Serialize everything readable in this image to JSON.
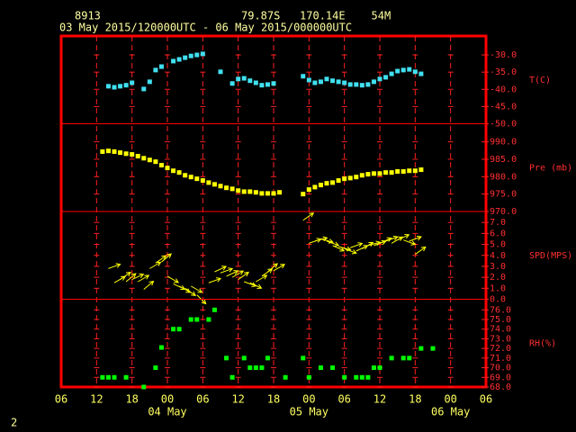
{
  "header": {
    "station": "8913",
    "location": "79.87S   170.14E    54M",
    "period": "03 May 2015/120000UTC - 06 May 2015/000000UTC"
  },
  "footer": "2",
  "x_axis": {
    "xlim": [
      0,
      72
    ],
    "xticks": [
      {
        "value": 0,
        "label": "06"
      },
      {
        "value": 6,
        "label": "12"
      },
      {
        "value": 12,
        "label": "18"
      },
      {
        "value": 18,
        "label": "00"
      },
      {
        "value": 24,
        "label": "06"
      },
      {
        "value": 30,
        "label": "12"
      },
      {
        "value": 36,
        "label": "18"
      },
      {
        "value": 42,
        "label": "00"
      },
      {
        "value": 48,
        "label": "06"
      },
      {
        "value": 54,
        "label": "12"
      },
      {
        "value": 60,
        "label": "18"
      },
      {
        "value": 66,
        "label": "00"
      },
      {
        "value": 72,
        "label": "06"
      }
    ],
    "day_labels": [
      {
        "value": 18,
        "label": "04 May"
      },
      {
        "value": 42,
        "label": "05 May"
      },
      {
        "value": 66,
        "label": "06 May"
      }
    ]
  },
  "chart_data": [
    {
      "type": "scatter",
      "ylabel": "T(C)",
      "color": "#40e0f0",
      "ylim": [
        -50,
        -24.5
      ],
      "yticks": [
        {
          "value": -30,
          "label": "-30.0"
        },
        {
          "value": -35,
          "label": "-35.0"
        },
        {
          "value": -40,
          "label": "-40.0"
        },
        {
          "value": -45,
          "label": "-45.0"
        },
        {
          "value": -50,
          "label": "-50.0"
        }
      ],
      "x": [
        8,
        9,
        10,
        11,
        12,
        14,
        15,
        16,
        17,
        19,
        20,
        21,
        22,
        23,
        24,
        27,
        29,
        30,
        31,
        32,
        33,
        34,
        35,
        36,
        41,
        42,
        43,
        44,
        45,
        46,
        47,
        48,
        49,
        50,
        51,
        52,
        53,
        54,
        55,
        56,
        57,
        58,
        59,
        60,
        61
      ],
      "values": [
        -39.1,
        -39.4,
        -39.1,
        -38.8,
        -38.1,
        -39.9,
        -37.8,
        -34.4,
        -33.4,
        -31.8,
        -31.3,
        -30.8,
        -30.3,
        -30.0,
        -29.7,
        -34.9,
        -38.3,
        -37.0,
        -36.8,
        -37.5,
        -38.1,
        -38.8,
        -38.6,
        -38.3,
        -36.2,
        -37.3,
        -38.1,
        -37.8,
        -37.0,
        -37.5,
        -37.8,
        -38.1,
        -38.6,
        -38.6,
        -38.8,
        -38.6,
        -37.8,
        -37.0,
        -36.5,
        -35.5,
        -34.7,
        -34.4,
        -34.2,
        -34.9,
        -35.5
      ]
    },
    {
      "type": "scatter",
      "ylabel": "Pre (mb)",
      "color": "#ffff00",
      "ylim": [
        970,
        995.2
      ],
      "yticks": [
        {
          "value": 990,
          "label": "990.0"
        },
        {
          "value": 985,
          "label": "985.0"
        },
        {
          "value": 980,
          "label": "980.0"
        },
        {
          "value": 975,
          "label": "975.0"
        },
        {
          "value": 970,
          "label": "970.0"
        }
      ],
      "x": [
        7,
        8,
        9,
        10,
        11,
        12,
        13,
        14,
        15,
        16,
        17,
        18,
        19,
        20,
        21,
        22,
        23,
        24,
        25,
        26,
        27,
        28,
        29,
        30,
        31,
        32,
        33,
        34,
        35,
        36,
        37,
        41,
        42,
        43,
        44,
        45,
        46,
        47,
        48,
        49,
        50,
        51,
        52,
        53,
        54,
        55,
        56,
        57,
        58,
        59,
        60,
        61
      ],
      "values": [
        987.2,
        987.4,
        987.2,
        986.9,
        986.6,
        986.4,
        985.9,
        985.3,
        984.8,
        984.3,
        983.3,
        982.5,
        981.7,
        981.2,
        980.4,
        979.9,
        979.4,
        978.9,
        978.3,
        977.8,
        977.3,
        976.8,
        976.5,
        976.0,
        975.7,
        975.7,
        975.5,
        975.2,
        975.2,
        975.2,
        975.5,
        975.0,
        976.3,
        977.0,
        977.6,
        978.1,
        978.3,
        978.9,
        979.4,
        979.6,
        979.9,
        980.4,
        980.7,
        980.9,
        980.9,
        981.2,
        981.2,
        981.5,
        981.5,
        981.7,
        981.7,
        982.0
      ]
    },
    {
      "type": "wind",
      "ylabel": "SPD(MPS)",
      "color": "#ffff00",
      "ylim": [
        0,
        8
      ],
      "yticks": [
        {
          "value": 7,
          "label": "7.0"
        },
        {
          "value": 6,
          "label": "6.0"
        },
        {
          "value": 5,
          "label": "5.0"
        },
        {
          "value": 4,
          "label": "4.0"
        },
        {
          "value": 3,
          "label": "3.0"
        },
        {
          "value": 2,
          "label": "2.0"
        },
        {
          "value": 1,
          "label": "1.0"
        },
        {
          "value": 0,
          "label": "0.0"
        }
      ],
      "x": [
        8,
        9,
        10,
        11,
        12,
        13,
        14,
        15,
        16,
        17,
        18,
        19,
        20,
        21,
        22,
        23,
        25,
        26,
        27,
        28,
        29,
        30,
        31,
        32,
        33,
        34,
        35,
        36,
        41,
        42,
        43,
        44,
        45,
        46,
        47,
        48,
        49,
        50,
        51,
        52,
        53,
        54,
        55,
        56,
        57,
        58,
        59,
        60
      ],
      "values": [
        2.8,
        1.5,
        1.8,
        1.6,
        1.8,
        1.6,
        0.9,
        2.8,
        3.3,
        3.4,
        2.1,
        1.4,
        1.2,
        1.0,
        1.2,
        0.4,
        1.5,
        2.5,
        2.4,
        2.1,
        2.0,
        1.8,
        1.6,
        1.5,
        1.6,
        2.1,
        2.5,
        2.6,
        7.2,
        5.1,
        5.3,
        5.5,
        5.3,
        4.9,
        4.8,
        4.6,
        4.7,
        4.4,
        4.6,
        4.9,
        4.9,
        5.1,
        5.3,
        5.1,
        5.4,
        5.4,
        5.3,
        4.1
      ],
      "directions": [
        20,
        30,
        35,
        40,
        25,
        30,
        40,
        30,
        35,
        40,
        -30,
        -25,
        -30,
        -35,
        -30,
        -45,
        20,
        25,
        20,
        25,
        30,
        35,
        -20,
        -25,
        30,
        35,
        40,
        30,
        35,
        20,
        15,
        -15,
        -20,
        -25,
        -15,
        -20,
        20,
        25,
        30,
        15,
        20,
        25,
        20,
        30,
        25,
        -20,
        20,
        35
      ]
    },
    {
      "type": "scatter",
      "ylabel": "RH(%)",
      "color": "#00ff00",
      "ylim": [
        68,
        77.1
      ],
      "yticks": [
        {
          "value": 76,
          "label": "76.0"
        },
        {
          "value": 75,
          "label": "75.0"
        },
        {
          "value": 74,
          "label": "74.0"
        },
        {
          "value": 73,
          "label": "73.0"
        },
        {
          "value": 72,
          "label": "72.0"
        },
        {
          "value": 71,
          "label": "71.0"
        },
        {
          "value": 70,
          "label": "70.0"
        },
        {
          "value": 69,
          "label": "69.0"
        },
        {
          "value": 68,
          "label": "68.0"
        }
      ],
      "x": [
        7,
        8,
        9,
        11,
        14,
        16,
        17,
        19,
        20,
        22,
        23,
        25,
        26,
        28,
        29,
        31,
        32,
        33,
        34,
        35,
        38,
        41,
        42,
        44,
        46,
        48,
        50,
        51,
        52,
        53,
        54,
        56,
        58,
        59,
        61,
        63
      ],
      "values": [
        69.0,
        69.0,
        69.0,
        69.0,
        68.0,
        70.0,
        72.1,
        74.0,
        74.0,
        75.0,
        75.0,
        75.0,
        76.0,
        71.0,
        69.0,
        71.0,
        70.0,
        70.0,
        70.0,
        71.0,
        69.0,
        71.0,
        69.0,
        70.0,
        70.0,
        69.0,
        69.0,
        69.0,
        69.0,
        70.0,
        70.0,
        71.0,
        71.0,
        71.0,
        72.0,
        72.0
      ]
    }
  ]
}
